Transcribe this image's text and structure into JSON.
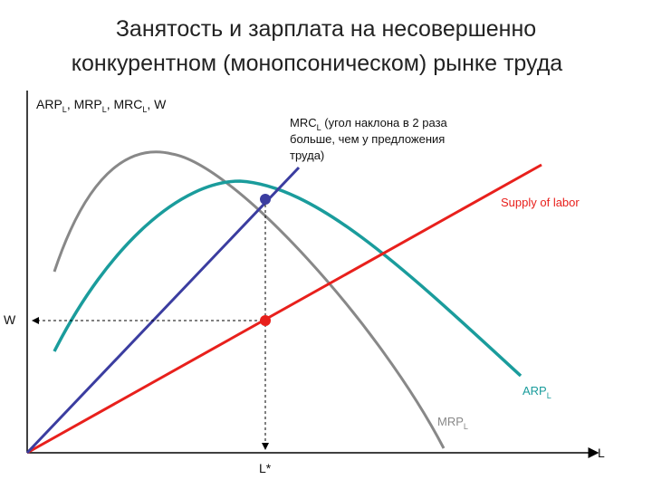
{
  "title": [
    "Занятость и зарплата на несовершенно",
    "конкурентном (монопсоническом) рынке труда"
  ],
  "y_axis_label": [
    {
      "text": "ARP",
      "sub": "L"
    },
    {
      "text": ", MRP",
      "sub": "L"
    },
    {
      "text": ",  MRC",
      "sub": "L"
    },
    {
      "text": ", W"
    }
  ],
  "x_axis_label": "L",
  "mrc_label": {
    "text": "MRC",
    "sub": "L",
    "lines": [
      " (угол наклона в 2 раза",
      "больше, чем у предложения",
      "труда)"
    ]
  },
  "supply_label": "Supply of labor",
  "arp_label": {
    "text": "ARP",
    "sub": "L"
  },
  "mrp_label": {
    "text": "MRP",
    "sub": "L"
  },
  "w_label": "W",
  "l_star_label": "L*"
}
